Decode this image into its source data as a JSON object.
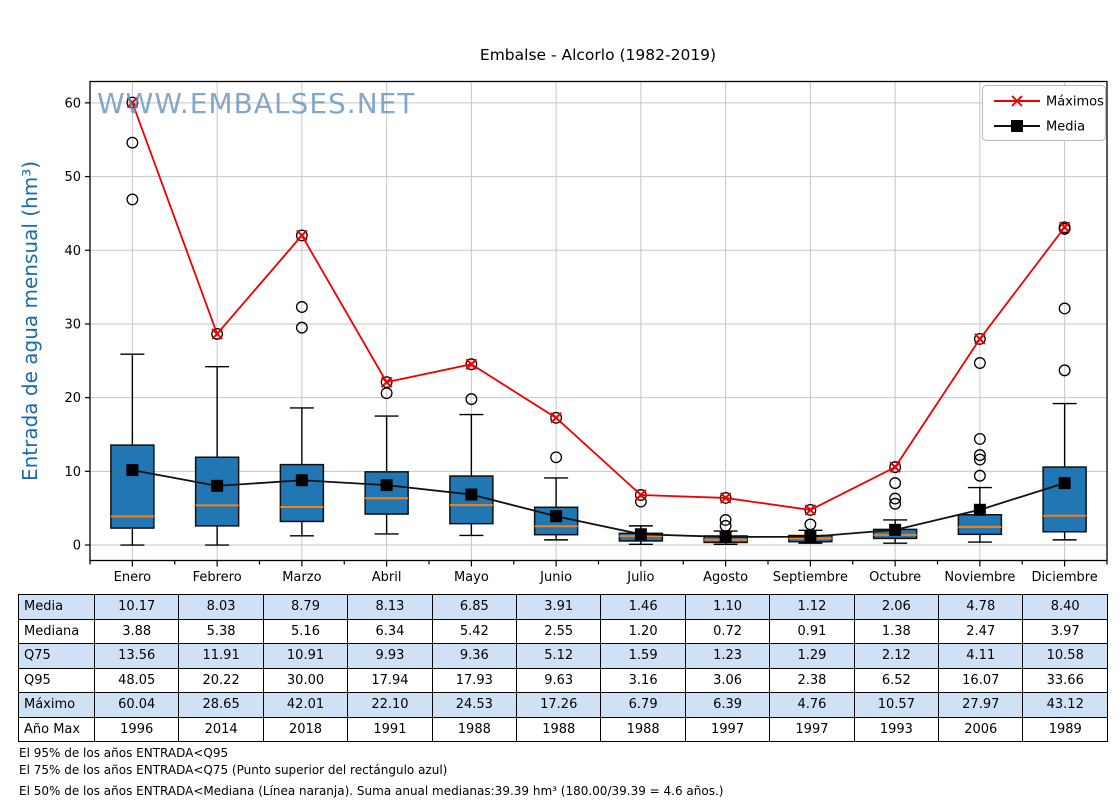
{
  "title": "Embalse - Alcorlo (1982-2019)",
  "watermark": "WWW.EMBALSES.NET",
  "y_axis": {
    "label": "Entrada de agua mensual (hm³)",
    "ticks": [
      0,
      10,
      20,
      30,
      40,
      50,
      60
    ]
  },
  "legend": {
    "maximos": "Máximos",
    "media": "Media"
  },
  "colors": {
    "box_fill": "#2077b4",
    "box_edge": "#101010",
    "median_line": "#ff7f0e",
    "max_line": "#ee0000",
    "mean_line": "#111111",
    "grid": "#c6c6c6",
    "axis_label_blue": "#1b6ba8",
    "watermark_blue": "#6593bd",
    "table_band": "#cfe2f5"
  },
  "chart_data": {
    "type": "boxplot",
    "categories": [
      "Enero",
      "Febrero",
      "Marzo",
      "Abril",
      "Mayo",
      "Junio",
      "Julio",
      "Agosto",
      "Septiembre",
      "Octubre",
      "Noviembre",
      "Diciembre"
    ],
    "ylim": [
      -2.1,
      62.9
    ],
    "grid": true,
    "legend_position": "upper right",
    "series": {
      "maximos": [
        60.04,
        28.65,
        42.01,
        22.1,
        24.53,
        17.26,
        6.79,
        6.39,
        4.76,
        10.57,
        27.97,
        43.12
      ],
      "media": [
        10.17,
        8.03,
        8.79,
        8.13,
        6.85,
        3.91,
        1.46,
        1.1,
        1.12,
        2.06,
        4.78,
        8.4
      ],
      "mediana": [
        3.88,
        5.38,
        5.16,
        6.34,
        5.42,
        2.55,
        1.2,
        0.72,
        0.91,
        1.38,
        2.47,
        3.97
      ],
      "q75": [
        13.56,
        11.91,
        10.91,
        9.93,
        9.36,
        5.12,
        1.59,
        1.23,
        1.29,
        2.12,
        4.11,
        10.58
      ],
      "q95": [
        48.05,
        20.22,
        30.0,
        17.94,
        17.93,
        9.63,
        3.16,
        3.06,
        2.38,
        6.52,
        16.07,
        33.66
      ],
      "q25_est": [
        2.3,
        2.6,
        3.2,
        4.2,
        2.9,
        1.4,
        0.55,
        0.35,
        0.45,
        0.9,
        1.45,
        1.8
      ],
      "whisker_low_est": [
        0.0,
        0.0,
        1.25,
        1.5,
        1.3,
        0.7,
        0.1,
        0.1,
        0.25,
        0.25,
        0.4,
        0.7
      ],
      "whisker_high_est": [
        25.9,
        24.2,
        18.6,
        17.5,
        17.7,
        9.1,
        2.6,
        1.9,
        2.0,
        3.4,
        7.8,
        19.2
      ],
      "outliers_est": [
        [
          46.9,
          54.6,
          60.04
        ],
        [
          28.65
        ],
        [
          29.5,
          32.3,
          42.01
        ],
        [
          20.6,
          22.1
        ],
        [
          19.8,
          24.53
        ],
        [
          11.9,
          17.26
        ],
        [
          5.9,
          6.79
        ],
        [
          2.6,
          3.4,
          6.39
        ],
        [
          2.8,
          4.76
        ],
        [
          5.6,
          6.3,
          8.4,
          10.57
        ],
        [
          9.4,
          11.6,
          12.2,
          14.4,
          24.7,
          27.97
        ],
        [
          23.7,
          32.1,
          42.9,
          43.12
        ]
      ]
    }
  },
  "table": {
    "row_labels": [
      "Media",
      "Mediana",
      "Q75",
      "Q95",
      "Máximo",
      "Año Max"
    ],
    "rows": [
      [
        "10.17",
        "8.03",
        "8.79",
        "8.13",
        "6.85",
        "3.91",
        "1.46",
        "1.10",
        "1.12",
        "2.06",
        "4.78",
        "8.40"
      ],
      [
        "3.88",
        "5.38",
        "5.16",
        "6.34",
        "5.42",
        "2.55",
        "1.20",
        "0.72",
        "0.91",
        "1.38",
        "2.47",
        "3.97"
      ],
      [
        "13.56",
        "11.91",
        "10.91",
        "9.93",
        "9.36",
        "5.12",
        "1.59",
        "1.23",
        "1.29",
        "2.12",
        "4.11",
        "10.58"
      ],
      [
        "48.05",
        "20.22",
        "30.00",
        "17.94",
        "17.93",
        "9.63",
        "3.16",
        "3.06",
        "2.38",
        "6.52",
        "16.07",
        "33.66"
      ],
      [
        "60.04",
        "28.65",
        "42.01",
        "22.10",
        "24.53",
        "17.26",
        "6.79",
        "6.39",
        "4.76",
        "10.57",
        "27.97",
        "43.12"
      ],
      [
        "1996",
        "2014",
        "2018",
        "1991",
        "1988",
        "1988",
        "1988",
        "1997",
        "1997",
        "1993",
        "2006",
        "1989"
      ]
    ]
  },
  "footnotes": [
    "El 95% de los años ENTRADA<Q95",
    "El 75% de los años ENTRADA<Q75 (Punto superior del rectángulo azul)",
    "El 50% de los años ENTRADA<Mediana (Línea naranja). Suma anual medianas:39.39 hm³ (180.00/39.39 = 4.6 años.)"
  ]
}
